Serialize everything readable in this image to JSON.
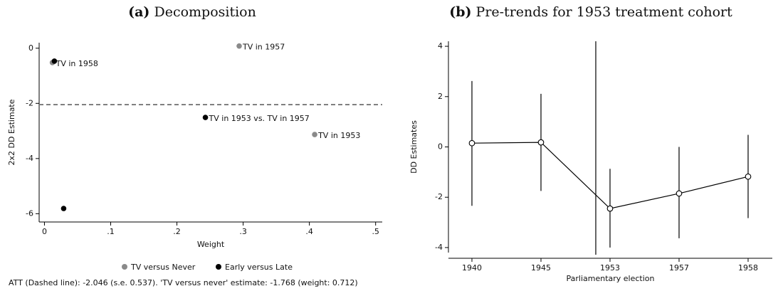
{
  "chart_data": [
    {
      "type": "scatter",
      "panel": "(a)",
      "title": "Decomposition",
      "x_label": "Weight",
      "y_label": "2x2 DD Estimate",
      "xlim": [
        -0.008,
        0.51
      ],
      "ylim": [
        -6.3,
        0.2
      ],
      "xticks": [
        0,
        {
          "value": 0.1,
          "label": ".1"
        },
        {
          "value": 0.2,
          "label": ".2"
        },
        {
          "value": 0.3,
          "label": ".3"
        },
        {
          "value": 0.4,
          "label": ".4"
        },
        {
          "value": 0.5,
          "label": ".5"
        }
      ],
      "yticks": [
        0,
        -2,
        -4,
        -6
      ],
      "hline": -2.046,
      "series": [
        {
          "name": "TV versus Never",
          "color": "#8a8a8a",
          "x": [
            0.294,
            0.012,
            0.408
          ],
          "values": [
            0.08,
            -0.52,
            -3.13
          ],
          "labels": [
            "TV in 1957",
            "TV in 1958",
            "TV in 1953"
          ]
        },
        {
          "name": "Early versus Late",
          "color": "#000000",
          "x": [
            0.015,
            0.243,
            0.029
          ],
          "values": [
            -0.47,
            -2.51,
            -5.81
          ],
          "labels": [
            null,
            "TV in 1953 vs. TV in 1957",
            null
          ]
        }
      ],
      "note": "ATT (Dashed line): -2.046 (s.e. 0.537). 'TV versus never' estimate: -1.768 (weight: 0.712)"
    },
    {
      "type": "line",
      "panel": "(b)",
      "title": "Pre-trends for 1953 treatment cohort",
      "x_label": "Parliamentary election",
      "y_label": "DD Estimates",
      "categories": [
        "1940",
        "1945",
        "1953",
        "1957",
        "1958"
      ],
      "ylim": [
        -4.2,
        4.2
      ],
      "yticks": [
        -4,
        -2,
        0,
        2,
        4
      ],
      "values": [
        0.15,
        0.18,
        -2.45,
        -1.85,
        -1.18
      ],
      "ci_low": [
        -2.34,
        -1.75,
        -4.0,
        -3.63,
        -2.83
      ],
      "ci_high": [
        2.62,
        2.11,
        -0.87,
        0,
        0.48
      ]
    }
  ]
}
